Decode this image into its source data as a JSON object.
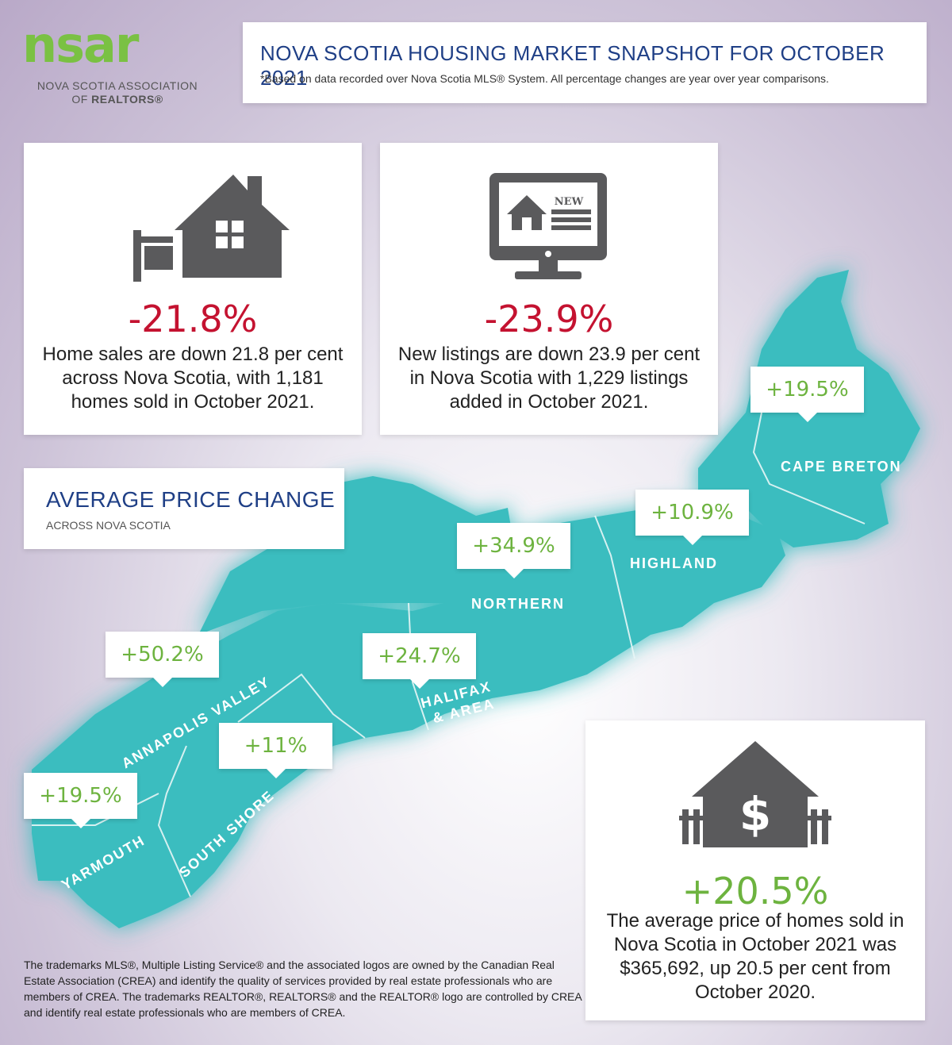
{
  "logo": {
    "mark": "nsar",
    "line1": "NOVA SCOTIA ASSOCIATION",
    "line2_prefix": "OF ",
    "line2_bold": "REALTORS®"
  },
  "header": {
    "title": "NOVA SCOTIA HOUSING MARKET SNAPSHOT FOR OCTOBER 2021",
    "subtitle": "*Based on data recorded over Nova Scotia MLS® System. All percentage changes are year over year comparisons."
  },
  "sales": {
    "icon": "house-for-sale-icon",
    "value": "-21.8%",
    "text": "Home sales are down 21.8 per cent across Nova Scotia, with 1,181 homes sold in October 2021."
  },
  "listings": {
    "icon": "new-listing-monitor-icon",
    "monitor_badge": "NEW",
    "value": "-23.9%",
    "text": "New listings are down 23.9 per cent in Nova Scotia with 1,229 listings added in October 2021."
  },
  "average": {
    "title": "AVERAGE PRICE CHANGE",
    "subtitle": "ACROSS NOVA SCOTIA"
  },
  "regions": [
    {
      "name": "CAPE BRETON",
      "change": "+19.5%"
    },
    {
      "name": "HIGHLAND",
      "change": "+10.9%"
    },
    {
      "name": "NORTHERN",
      "change": "+34.9%"
    },
    {
      "name": "HALIFAX",
      "name2": "& AREA",
      "change": "+24.7%"
    },
    {
      "name": "ANNAPOLIS VALLEY",
      "change": "+50.2%"
    },
    {
      "name": "SOUTH SHORE",
      "change": "+11%"
    },
    {
      "name": "YARMOUTH",
      "change": "+19.5%"
    }
  ],
  "price": {
    "icon": "house-dollar-icon",
    "value": "+20.5%",
    "text": "The average price of homes sold in Nova Scotia in October 2021 was $365,692, up 20.5 per cent from October 2020."
  },
  "footnote": "The trademarks MLS®, Multiple Listing Service® and the associated logos are owned by the Canadian Real Estate Association (CREA) and identify the quality of services provided by real estate professionals who are members of CREA. The trademarks REALTOR®, REALTORS® and the REALTOR® logo are controlled by CREA and identify real estate professionals who are members of CREA.",
  "colors": {
    "map_fill": "#3bbdbf",
    "headline_blue": "#1f3f86",
    "negative_red": "#c41230",
    "positive_green": "#6db33f",
    "icon_gray": "#5a5a5c"
  }
}
